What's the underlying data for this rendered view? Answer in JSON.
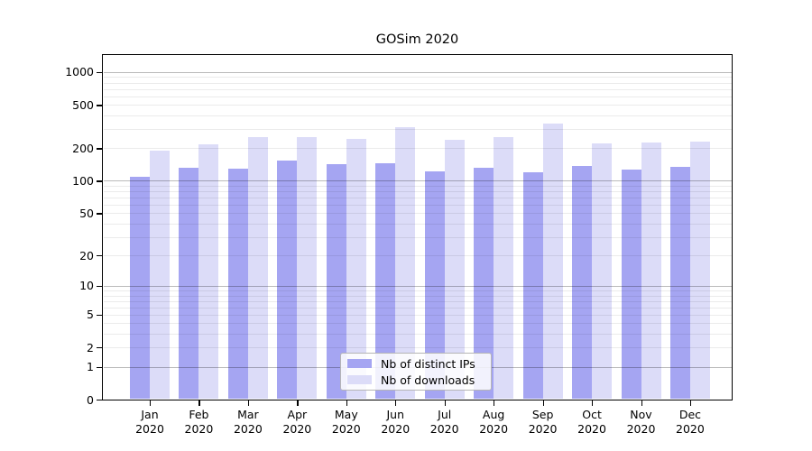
{
  "chart_data": {
    "type": "bar",
    "title": "GOSim 2020",
    "categories": [
      "Jan",
      "Feb",
      "Mar",
      "Apr",
      "May",
      "Jun",
      "Jul",
      "Aug",
      "Sep",
      "Oct",
      "Nov",
      "Dec"
    ],
    "category_year": "2020",
    "series": [
      {
        "name": "Nb of distinct IPs",
        "color": "#a5a5f2",
        "values": [
          108,
          133,
          130,
          153,
          142,
          146,
          122,
          133,
          121,
          137,
          128,
          135
        ]
      },
      {
        "name": "Nb of downloads",
        "color": "#dcdcf8",
        "values": [
          190,
          217,
          252,
          254,
          245,
          310,
          240,
          255,
          340,
          222,
          224,
          232
        ]
      }
    ],
    "y_ticks": [
      0,
      1,
      2,
      5,
      10,
      20,
      50,
      100,
      200,
      500,
      1000
    ],
    "y_scale": "pseudo-log (log10(value+1))",
    "ylim": [
      0,
      1430
    ],
    "grid": true,
    "legend_position": "inside lower-center"
  }
}
